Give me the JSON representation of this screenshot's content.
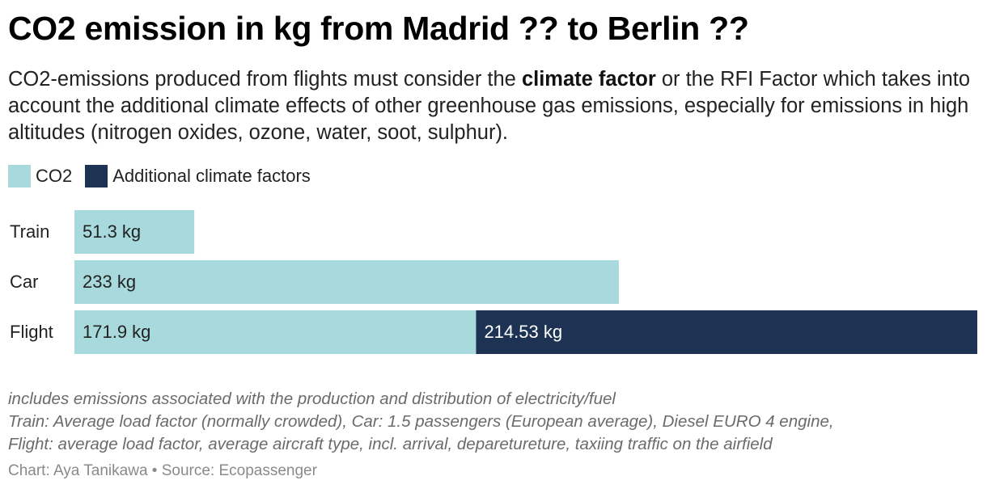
{
  "title": "CO2 emission in kg from Madrid ?? to Berlin ??",
  "subtitle": {
    "before": "CO2-emissions produced from flights must consider the ",
    "bold": "climate factor",
    "after": " or the RFI Factor which takes into account the additional climate effects of other greenhouse gas emissions, especially for emissions in high altitudes (nitrogen oxides, ozone, water, soot, sulphur)."
  },
  "colors": {
    "co2": "#a8d9dc",
    "additional": "#1e3354",
    "label_on_light": "#222222",
    "label_on_dark": "#ffffff"
  },
  "chart_data": {
    "type": "bar",
    "orientation": "horizontal",
    "stacked": true,
    "categories": [
      "Train",
      "Car",
      "Flight"
    ],
    "series": [
      {
        "name": "CO2",
        "values": [
          51.3,
          233,
          171.9
        ],
        "labels": [
          "51.3 kg",
          "233 kg",
          "171.9 kg"
        ]
      },
      {
        "name": "Additional climate factors",
        "values": [
          0,
          0,
          214.53
        ],
        "labels": [
          "",
          "",
          "214.53 kg"
        ]
      }
    ],
    "xlim": [
      0,
      386.43
    ],
    "legend_position": "top-left"
  },
  "notes": [
    "includes emissions associated with the production and distribution of electricity/fuel",
    "Train: Average load factor (normally crowded), Car: 1.5 passengers (European average), Diesel EURO 4 engine,",
    "Flight: average load factor, average aircraft type, incl. arrival, deparetureture, taxiing traffic on the airfield"
  ],
  "credit": "Chart: Aya Tanikawa • Source: Ecopassenger"
}
